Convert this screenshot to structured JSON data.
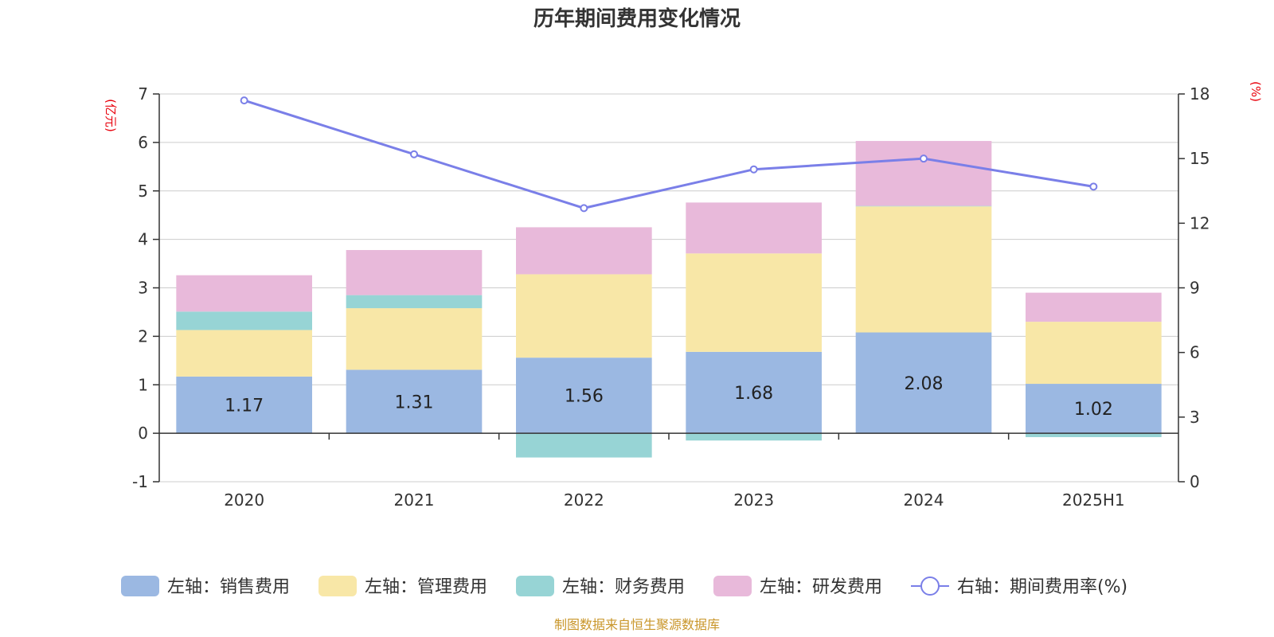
{
  "chart_data": {
    "type": "bar",
    "stacked": true,
    "title": "历年期间费用变化情况",
    "categories": [
      "2020",
      "2021",
      "2022",
      "2023",
      "2024",
      "2025H1"
    ],
    "left_axis": {
      "unit": "(亿元)",
      "min": -1,
      "max": 7,
      "ticks": [
        "-1",
        "0",
        "1",
        "2",
        "3",
        "4",
        "5",
        "6",
        "7"
      ]
    },
    "right_axis": {
      "unit": "(%)",
      "min": 0,
      "max": 18,
      "ticks": [
        "0",
        "3",
        "6",
        "9",
        "12",
        "15",
        "18"
      ]
    },
    "series": [
      {
        "name": "左轴：销售费用",
        "type": "bar",
        "axis": "left",
        "color": "#9bb8e2",
        "values": [
          1.17,
          1.31,
          1.56,
          1.68,
          2.08,
          1.02
        ],
        "labels": [
          "1.17",
          "1.31",
          "1.56",
          "1.68",
          "2.08",
          "1.02"
        ]
      },
      {
        "name": "左轴：管理费用",
        "type": "bar",
        "axis": "left",
        "color": "#f8e7a7",
        "values": [
          0.96,
          1.27,
          1.72,
          2.03,
          2.6,
          1.28
        ]
      },
      {
        "name": "左轴：财务费用",
        "type": "bar",
        "axis": "left",
        "color": "#97d4d5",
        "values": [
          0.38,
          0.27,
          -0.5,
          -0.15,
          0.01,
          -0.08
        ]
      },
      {
        "name": "左轴：研发费用",
        "type": "bar",
        "axis": "left",
        "color": "#e8b9da",
        "values": [
          0.75,
          0.93,
          0.97,
          1.05,
          1.34,
          0.6
        ]
      },
      {
        "name": "右轴：期间费用率(%)",
        "type": "line",
        "axis": "right",
        "color": "#7a7fe8",
        "values": [
          17.7,
          15.2,
          12.7,
          14.5,
          15.0,
          13.7
        ]
      }
    ],
    "grid": true,
    "legend_position": "bottom"
  },
  "footer": {
    "source": "制图数据来自恒生聚源数据库"
  }
}
